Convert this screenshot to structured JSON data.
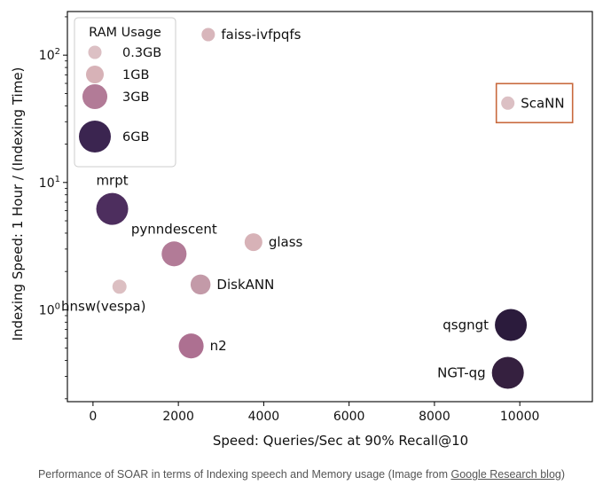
{
  "chart_data": {
    "type": "scatter",
    "xlabel": "Speed: Queries/Sec at 90% Recall@10",
    "ylabel": "Indexing Speed: 1 Hour / (Indexing Time)",
    "xlim": [
      -600,
      11700
    ],
    "ylim": [
      0.19,
      220
    ],
    "y_scale": "log",
    "grid": false,
    "x_ticks": [
      {
        "value": 0,
        "label": "0"
      },
      {
        "value": 2000,
        "label": "2000"
      },
      {
        "value": 4000,
        "label": "4000"
      },
      {
        "value": 6000,
        "label": "6000"
      },
      {
        "value": 8000,
        "label": "8000"
      },
      {
        "value": 10000,
        "label": "10000"
      }
    ],
    "y_ticks": [
      {
        "value": 1,
        "label": "10",
        "exp": "0"
      },
      {
        "value": 10,
        "label": "10",
        "exp": "1"
      },
      {
        "value": 100,
        "label": "10",
        "exp": "2"
      }
    ],
    "points": [
      {
        "label": "faiss-ivfpqfs",
        "x": 2700,
        "y": 145,
        "ram_gb": 0.3,
        "color": "#d8b6bb",
        "label_side": "right"
      },
      {
        "label": "ScaNN",
        "x": 9720,
        "y": 42,
        "ram_gb": 0.3,
        "color": "#dcc0c4",
        "label_side": "right",
        "highlight": true
      },
      {
        "label": "mrpt",
        "x": 450,
        "y": 6.2,
        "ram_gb": 6,
        "color": "#4d2e5e",
        "label_side": "above"
      },
      {
        "label": "pynndescent",
        "x": 1900,
        "y": 2.75,
        "ram_gb": 3,
        "color": "#b27b97",
        "label_side": "above"
      },
      {
        "label": "glass",
        "x": 3760,
        "y": 3.4,
        "ram_gb": 1,
        "color": "#d7b2b7",
        "label_side": "right"
      },
      {
        "label": "DiskANN",
        "x": 2520,
        "y": 1.58,
        "ram_gb": 1.5,
        "color": "#c39aa8",
        "label_side": "right"
      },
      {
        "label": "hnsw(vespa)",
        "x": 620,
        "y": 1.52,
        "ram_gb": 0.4,
        "color": "#dcbfc2",
        "label_side": "below"
      },
      {
        "label": "n2",
        "x": 2300,
        "y": 0.52,
        "ram_gb": 3,
        "color": "#ad7091",
        "label_side": "right"
      },
      {
        "label": "qsgngt",
        "x": 9790,
        "y": 0.76,
        "ram_gb": 6,
        "color": "#2b1b3c",
        "label_side": "left"
      },
      {
        "label": "NGT-qg",
        "x": 9720,
        "y": 0.32,
        "ram_gb": 6,
        "color": "#35203f",
        "label_side": "left"
      }
    ],
    "legend": {
      "title": "RAM Usage",
      "placement": "top-left",
      "entries": [
        {
          "label": "0.3GB",
          "ram_gb": 0.3,
          "color": "#dcc0c4"
        },
        {
          "label": "1GB",
          "ram_gb": 1,
          "color": "#d7b2b7"
        },
        {
          "label": "3GB",
          "ram_gb": 3,
          "color": "#b27b97"
        },
        {
          "label": "6GB",
          "ram_gb": 6,
          "color": "#3b2550"
        }
      ]
    },
    "highlight_box_color": "#c8693d"
  },
  "caption": {
    "text": "Performance of SOAR in terms of Indexing speech and Memory usage (Image from ",
    "link": "Google Research blog",
    "suffix": ")"
  }
}
